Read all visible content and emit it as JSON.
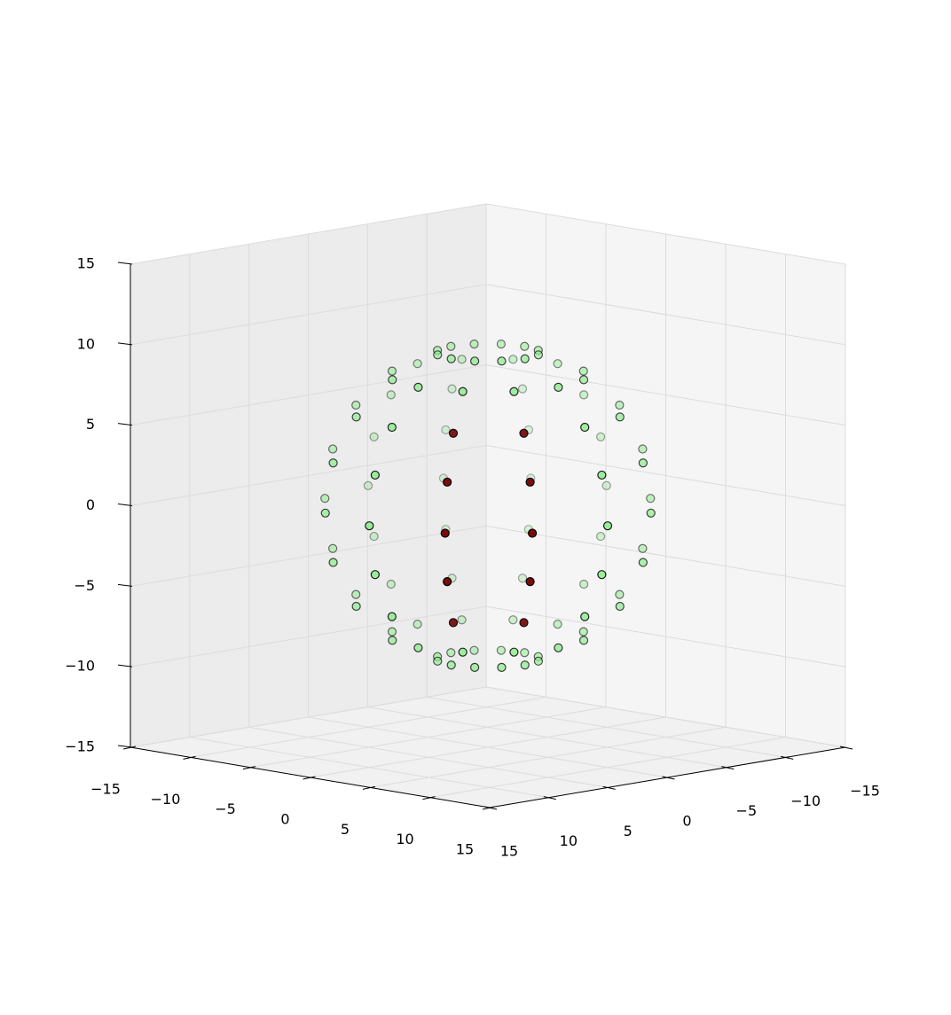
{
  "chart_data": {
    "type": "scatter3d",
    "xlim": [
      -15,
      15
    ],
    "ylim": [
      -15,
      15
    ],
    "zlim": [
      -15,
      15
    ],
    "xticks": [
      {
        "value": -15,
        "label": "−15"
      },
      {
        "value": -10,
        "label": "−10"
      },
      {
        "value": -5,
        "label": "−5"
      },
      0,
      5,
      10,
      15
    ],
    "yticks": [
      {
        "value": -15,
        "label": "−15"
      },
      {
        "value": -10,
        "label": "−10"
      },
      {
        "value": -5,
        "label": "−5"
      },
      0,
      5,
      10,
      15
    ],
    "zticks": [
      {
        "value": -15,
        "label": "−15"
      },
      {
        "value": -10,
        "label": "−10"
      },
      {
        "value": -5,
        "label": "−5"
      },
      0,
      5,
      10,
      15
    ],
    "grid": true,
    "series": [
      {
        "color": "#90ee90",
        "edgecolor": "#000000",
        "x": [
          3.09,
          2.68,
          1.55,
          0,
          -1.55,
          -2.68,
          -3.09,
          -2.68,
          -1.55,
          0,
          1.55,
          2.68,
          5.88,
          5.09,
          2.94,
          0,
          -2.94,
          -5.09,
          -5.88,
          -5.09,
          -2.94,
          0,
          2.94,
          5.09,
          8.09,
          0,
          -4.05,
          -7.01,
          -8.09,
          -7.01,
          -4.05,
          0,
          4.05,
          7.01,
          9.51,
          0,
          -4.76,
          -8.24,
          -9.51,
          -8.24,
          -4.76,
          0,
          4.76,
          8.24,
          10,
          0,
          -5,
          -8.66,
          -10,
          -8.66,
          -5,
          0,
          5,
          8.66,
          9.51,
          0,
          -4.76,
          -8.24,
          -9.51,
          -8.24,
          -4.76,
          0,
          4.76,
          8.24,
          8.09,
          0,
          -4.05,
          -7.01,
          -8.09,
          -7.01,
          -4.05,
          0,
          4.05,
          7.01,
          5.88,
          5.09,
          2.94,
          0,
          -2.94,
          -5.09,
          -5.88,
          -5.09,
          -2.94,
          0,
          2.94,
          5.09,
          3.09,
          2.68,
          1.55,
          0,
          -1.55,
          -2.68,
          -3.09,
          -2.68,
          -1.55,
          0,
          1.55,
          2.68
        ],
        "y": [
          0,
          1.55,
          2.68,
          3.09,
          2.68,
          1.55,
          0,
          -1.55,
          -2.68,
          -3.09,
          -2.68,
          -1.55,
          0,
          2.94,
          5.09,
          5.88,
          5.09,
          2.94,
          0,
          -2.94,
          -5.09,
          -5.88,
          -5.09,
          -2.94,
          0,
          8.09,
          7.01,
          4.05,
          0,
          -4.05,
          -7.01,
          -8.09,
          -7.01,
          -4.05,
          0,
          9.51,
          8.24,
          4.76,
          0,
          -4.76,
          -8.24,
          -9.51,
          -8.24,
          -4.76,
          0,
          10,
          8.66,
          5,
          0,
          -5,
          -8.66,
          -10,
          -8.66,
          -5,
          0,
          9.51,
          8.24,
          4.76,
          0,
          -4.76,
          -8.24,
          -9.51,
          -8.24,
          -4.76,
          0,
          8.09,
          7.01,
          4.05,
          0,
          -4.05,
          -7.01,
          -8.09,
          -7.01,
          -4.05,
          0,
          2.94,
          5.09,
          5.88,
          5.09,
          2.94,
          0,
          -2.94,
          -5.09,
          -5.88,
          -5.09,
          -2.94,
          0,
          1.55,
          2.68,
          3.09,
          2.68,
          1.55,
          0,
          -1.55,
          -2.68,
          -3.09,
          -2.68,
          -1.55
        ],
        "z": [
          9.51,
          9.51,
          9.51,
          9.51,
          9.51,
          9.51,
          9.51,
          9.51,
          9.51,
          9.51,
          9.51,
          9.51,
          8.09,
          8.09,
          8.09,
          8.09,
          8.09,
          8.09,
          8.09,
          8.09,
          8.09,
          8.09,
          8.09,
          8.09,
          5.88,
          5.88,
          5.88,
          5.88,
          5.88,
          5.88,
          5.88,
          5.88,
          5.88,
          5.88,
          3.09,
          3.09,
          3.09,
          3.09,
          3.09,
          3.09,
          3.09,
          3.09,
          3.09,
          3.09,
          0,
          0,
          0,
          0,
          0,
          0,
          0,
          0,
          0,
          0,
          -3.09,
          -3.09,
          -3.09,
          -3.09,
          -3.09,
          -3.09,
          -3.09,
          -3.09,
          -3.09,
          -3.09,
          -5.88,
          -5.88,
          -5.88,
          -5.88,
          -5.88,
          -5.88,
          -5.88,
          -5.88,
          -5.88,
          -5.88,
          -8.09,
          -8.09,
          -8.09,
          -8.09,
          -8.09,
          -8.09,
          -8.09,
          -8.09,
          -8.09,
          -8.09,
          -8.09,
          -8.09,
          -9.51,
          -9.51,
          -9.51,
          -9.51,
          -9.51,
          -9.51,
          -9.51,
          -9.51,
          -9.51,
          -9.51,
          -9.51,
          -9.51
        ]
      },
      {
        "color": "#7a0a0a",
        "edgecolor": "#000000",
        "x": [
          7.01,
          4.05,
          8.24,
          4.76,
          8.66,
          5,
          8.24,
          4.76,
          7.01,
          4.05
        ],
        "y": [
          4.05,
          7.01,
          4.76,
          8.24,
          5,
          8.66,
          4.76,
          8.24,
          4.05,
          7.01
        ],
        "z": [
          5.88,
          5.88,
          3.09,
          3.09,
          0,
          0,
          -3.09,
          -3.09,
          -5.88,
          -5.88
        ]
      }
    ]
  }
}
